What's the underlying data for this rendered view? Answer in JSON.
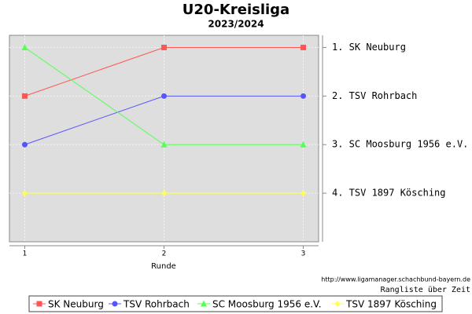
{
  "chart_data": {
    "type": "line",
    "title": "U20-Kreisliga",
    "subtitle": "2023/2024",
    "x_label": "Runde",
    "source": "http://www.ligamanager.schachbund-bayern.de",
    "caption": "Rangliste über Zeit",
    "x": [
      1,
      2,
      3
    ],
    "xlim": [
      0.89,
      3.11
    ],
    "xticks": [
      1,
      2,
      3
    ],
    "ylim": [
      5,
      0.75
    ],
    "yticks": [
      {
        "value": 1,
        "label": "1. SK Neuburg"
      },
      {
        "value": 2,
        "label": "2. TSV Rohrbach"
      },
      {
        "value": 3,
        "label": "3. SC Moosburg 1956 e.V."
      },
      {
        "value": 4,
        "label": "4. TSV 1897 Kösching"
      }
    ],
    "grid": true,
    "legend": "bottom",
    "series": [
      {
        "name": "SK Neuburg",
        "color": "#ff5555",
        "marker": "square",
        "values": [
          2,
          1,
          1
        ]
      },
      {
        "name": "TSV Rohrbach",
        "color": "#5555ff",
        "marker": "circle",
        "values": [
          3,
          2,
          2
        ]
      },
      {
        "name": "SC Moosburg 1956 e.V.",
        "color": "#55ff55",
        "marker": "triangle",
        "values": [
          1,
          3,
          3
        ]
      },
      {
        "name": "TSV 1897 Kösching",
        "color": "#ffff55",
        "marker": "diamond",
        "values": [
          4,
          4,
          4
        ]
      }
    ]
  }
}
